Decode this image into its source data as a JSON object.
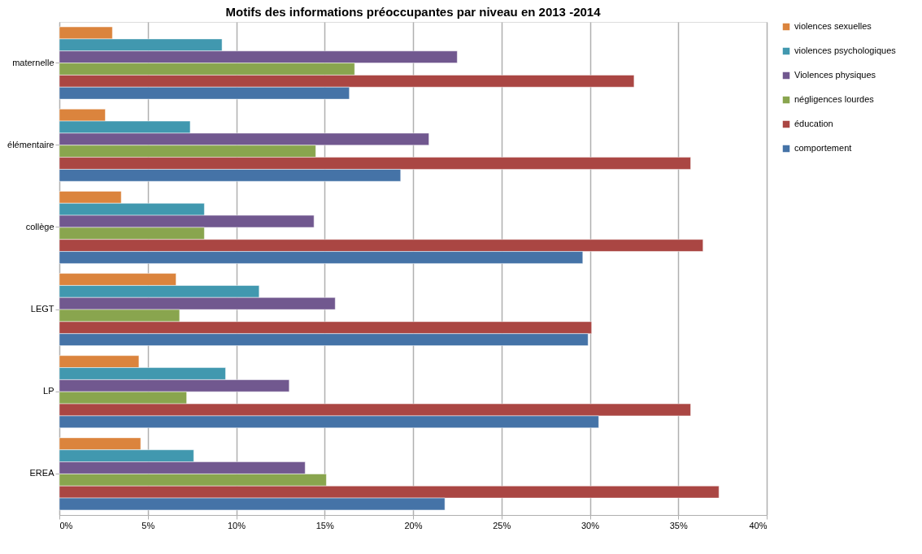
{
  "chart_data": {
    "type": "bar",
    "orientation": "horizontal",
    "title": "Motifs des informations préoccupantes par niveau en 2013 -2014",
    "categories": [
      "maternelle",
      "élémentaire",
      "collège",
      "LEGT",
      "LP",
      "EREA"
    ],
    "series": [
      {
        "name": "violences sexuelles",
        "color": "#db843d",
        "values": [
          3.0,
          2.6,
          3.5,
          6.6,
          4.5,
          4.6
        ]
      },
      {
        "name": "violences psychologiques",
        "color": "#4198af",
        "values": [
          9.2,
          7.4,
          8.2,
          11.3,
          9.4,
          7.6
        ]
      },
      {
        "name": "Violences physiques",
        "color": "#71588f",
        "values": [
          22.5,
          20.9,
          14.4,
          15.6,
          13.0,
          13.9
        ]
      },
      {
        "name": "négligences lourdes",
        "color": "#89a54e",
        "values": [
          16.7,
          14.5,
          8.2,
          6.8,
          7.2,
          15.1
        ]
      },
      {
        "name": "éducation",
        "color": "#aa4643",
        "values": [
          32.5,
          35.7,
          36.4,
          30.1,
          35.7,
          37.3
        ]
      },
      {
        "name": "comportement",
        "color": "#4573a7",
        "values": [
          16.4,
          19.3,
          29.6,
          29.9,
          30.5,
          21.8
        ]
      }
    ],
    "xlim": [
      0,
      40
    ],
    "xticks": [
      {
        "value": 0,
        "label": "0%"
      },
      {
        "value": 5,
        "label": "5%"
      },
      {
        "value": 10,
        "label": "10%"
      },
      {
        "value": 15,
        "label": "15%"
      },
      {
        "value": 20,
        "label": "20%"
      },
      {
        "value": 25,
        "label": "25%"
      },
      {
        "value": 30,
        "label": "30%"
      },
      {
        "value": 35,
        "label": "35%"
      },
      {
        "value": 40,
        "label": "40%"
      }
    ],
    "grid": "x",
    "legend": "right"
  }
}
